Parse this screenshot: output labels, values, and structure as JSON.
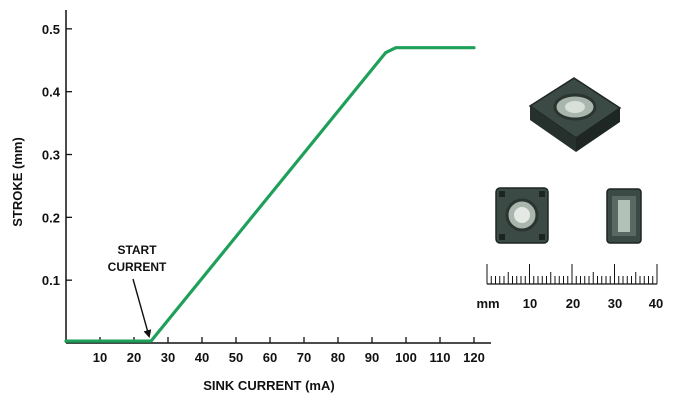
{
  "chart_data": {
    "type": "line",
    "xlabel": "SINK CURRENT (mA)",
    "ylabel": "STROKE (mm)",
    "xlim": [
      0,
      125
    ],
    "ylim": [
      0,
      0.53
    ],
    "x_ticks": [
      10,
      20,
      30,
      40,
      50,
      60,
      70,
      80,
      90,
      100,
      110,
      120
    ],
    "y_ticks": [
      0.1,
      0.2,
      0.3,
      0.4,
      0.5
    ],
    "y_tick_labels": [
      "0.1",
      "0.2",
      "0.3",
      "0.4",
      "0.5"
    ],
    "grid": false,
    "series": [
      {
        "color": "#1fa05a",
        "points": [
          [
            0,
            0.003
          ],
          [
            25,
            0.003
          ],
          [
            94,
            0.462
          ],
          [
            97,
            0.47
          ],
          [
            120,
            0.47
          ]
        ]
      }
    ],
    "annotations": [
      {
        "lines": [
          "START",
          "CURRENT"
        ],
        "points_to": [
          25,
          0.003
        ]
      }
    ]
  },
  "scale_bar": {
    "unit": "mm",
    "labels": [
      "10",
      "20",
      "30",
      "40"
    ]
  },
  "photo": {
    "body_color": "#3b4a44",
    "highlight_color": "#8fa198"
  }
}
